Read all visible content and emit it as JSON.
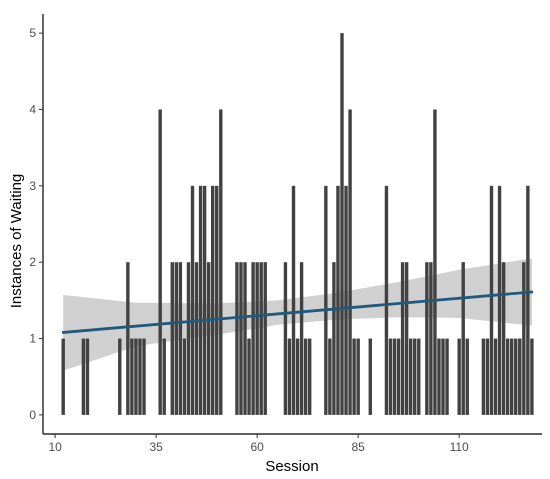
{
  "chart_data": {
    "type": "bar",
    "title": "",
    "xlabel": "Session",
    "ylabel": "Instances of Waiting",
    "xlim": [
      7,
      130.5
    ],
    "ylim": [
      -0.25,
      5.25
    ],
    "xticks": [
      10,
      35,
      60,
      85,
      110
    ],
    "yticks": [
      0,
      1,
      2,
      3,
      4,
      5
    ],
    "grid": false,
    "legend": "none",
    "colors": {
      "bar": "#424242",
      "trend": "#1f5a7e",
      "band": "#c4c4c4"
    },
    "x": [
      12,
      13,
      14,
      15,
      16,
      17,
      18,
      19,
      20,
      21,
      22,
      23,
      24,
      25,
      26,
      27,
      28,
      29,
      30,
      31,
      32,
      33,
      34,
      35,
      36,
      37,
      38,
      39,
      40,
      41,
      42,
      43,
      44,
      45,
      46,
      47,
      48,
      49,
      50,
      51,
      52,
      53,
      54,
      55,
      56,
      57,
      58,
      59,
      60,
      61,
      62,
      63,
      64,
      65,
      66,
      67,
      68,
      69,
      70,
      71,
      72,
      73,
      74,
      75,
      76,
      77,
      78,
      79,
      80,
      81,
      82,
      83,
      84,
      85,
      86,
      87,
      88,
      89,
      90,
      91,
      92,
      93,
      94,
      95,
      96,
      97,
      98,
      99,
      100,
      101,
      102,
      103,
      104,
      105,
      106,
      107,
      108,
      109,
      110,
      111,
      112,
      113,
      114,
      115,
      116,
      117,
      118,
      119,
      120,
      121,
      122,
      123,
      124,
      125,
      126,
      127,
      128
    ],
    "values": [
      1,
      0,
      0,
      0,
      0,
      1,
      1,
      0,
      0,
      0,
      0,
      0,
      0,
      0,
      1,
      0,
      2,
      1,
      1,
      1,
      1,
      0,
      0,
      0,
      4,
      1,
      0,
      2,
      2,
      2,
      1,
      2,
      3,
      2,
      3,
      3,
      2,
      3,
      3,
      4,
      0,
      0,
      0,
      2,
      2,
      2,
      1,
      2,
      2,
      2,
      2,
      0,
      0,
      0,
      0,
      2,
      1,
      3,
      1,
      2,
      1,
      1,
      0,
      0,
      0,
      3,
      1,
      2,
      3,
      5,
      3,
      4,
      1,
      1,
      0,
      0,
      1,
      0,
      0,
      0,
      3,
      1,
      1,
      1,
      2,
      2,
      1,
      1,
      1,
      0,
      2,
      2,
      4,
      1,
      1,
      1,
      0,
      0,
      1,
      2,
      1,
      0,
      0,
      0,
      1,
      1,
      3,
      1,
      3,
      2,
      1,
      1,
      1,
      1,
      2,
      3,
      1
    ],
    "trend": {
      "x": [
        12,
        128
      ],
      "y": [
        1.08,
        1.61
      ]
    },
    "band": {
      "x": [
        12,
        30,
        50,
        65,
        80,
        95,
        110,
        128
      ],
      "lower": [
        0.58,
        0.9,
        1.05,
        1.18,
        1.25,
        1.28,
        1.27,
        1.17
      ],
      "upper": [
        1.57,
        1.47,
        1.46,
        1.5,
        1.6,
        1.74,
        1.9,
        2.05
      ]
    }
  }
}
